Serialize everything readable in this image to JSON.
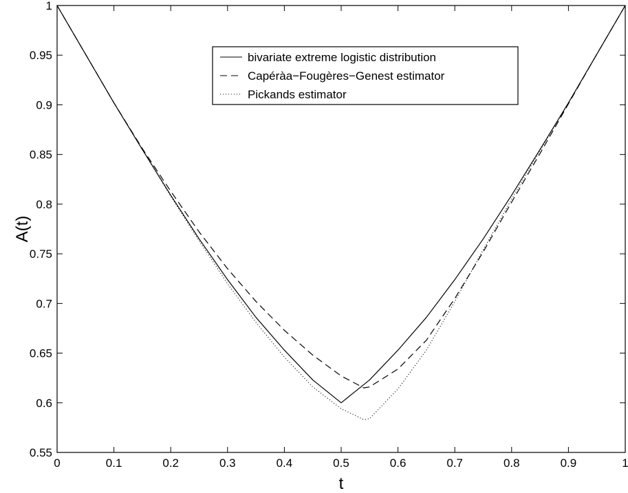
{
  "chart_data": {
    "type": "line",
    "title": "",
    "xlabel": "t",
    "ylabel": "A(t)",
    "xlim": [
      0,
      1
    ],
    "ylim": [
      0.55,
      1
    ],
    "xticks": [
      "0",
      "0.1",
      "0.2",
      "0.3",
      "0.4",
      "0.5",
      "0.6",
      "0.7",
      "0.8",
      "0.9",
      "1"
    ],
    "yticks": [
      "0.55",
      "0.6",
      "0.65",
      "0.7",
      "0.75",
      "0.8",
      "0.85",
      "0.9",
      "0.95",
      "1"
    ],
    "grid": false,
    "legend_position": "top-right",
    "series": [
      {
        "name": "bivariate extreme logistic distribution",
        "style": "solid",
        "color": "#000000",
        "x": [
          0,
          0.05,
          0.1,
          0.15,
          0.2,
          0.25,
          0.3,
          0.35,
          0.4,
          0.45,
          0.5,
          0.55,
          0.6,
          0.65,
          0.7,
          0.75,
          0.8,
          0.85,
          0.9,
          0.95,
          1
        ],
        "y": [
          1,
          0.951,
          0.902,
          0.855,
          0.809,
          0.765,
          0.724,
          0.686,
          0.653,
          0.623,
          0.6,
          0.623,
          0.653,
          0.686,
          0.724,
          0.765,
          0.809,
          0.855,
          0.902,
          0.951,
          1
        ]
      },
      {
        "name": "Capéràa−Fougères−Genest estimator",
        "style": "dashed",
        "color": "#000000",
        "x": [
          0,
          0.05,
          0.1,
          0.15,
          0.2,
          0.25,
          0.3,
          0.35,
          0.4,
          0.45,
          0.5,
          0.54,
          0.55,
          0.6,
          0.65,
          0.7,
          0.75,
          0.8,
          0.85,
          0.9,
          0.95,
          1
        ],
        "y": [
          1,
          0.951,
          0.902,
          0.856,
          0.813,
          0.772,
          0.735,
          0.702,
          0.673,
          0.648,
          0.627,
          0.615,
          0.616,
          0.634,
          0.663,
          0.705,
          0.752,
          0.802,
          0.851,
          0.901,
          0.951,
          1
        ]
      },
      {
        "name": "Pickands estimator",
        "style": "dotted",
        "color": "#000000",
        "x": [
          0,
          0.05,
          0.1,
          0.15,
          0.2,
          0.25,
          0.3,
          0.35,
          0.4,
          0.45,
          0.5,
          0.54,
          0.55,
          0.6,
          0.65,
          0.7,
          0.75,
          0.8,
          0.85,
          0.9,
          0.95,
          1
        ],
        "y": [
          1,
          0.951,
          0.902,
          0.855,
          0.808,
          0.763,
          0.72,
          0.681,
          0.646,
          0.616,
          0.594,
          0.583,
          0.584,
          0.614,
          0.653,
          0.702,
          0.754,
          0.805,
          0.854,
          0.902,
          0.951,
          1
        ]
      }
    ]
  }
}
